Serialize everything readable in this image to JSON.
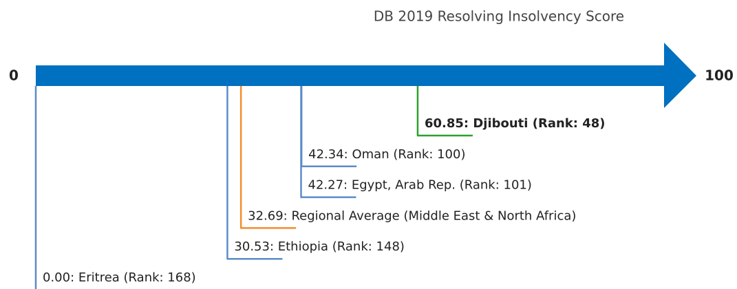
{
  "chart_data": {
    "type": "scale",
    "title": "DB 2019 Resolving Insolvency Score",
    "xlim": [
      0,
      100
    ],
    "xticks": [
      0,
      100
    ],
    "axis_color": "#0070c0",
    "values": [
      60.85,
      42.34,
      42.27,
      32.69,
      30.53,
      0
    ],
    "value_labels": [
      "60.85: Djibouti (Rank: 48)",
      "42.34: Oman (Rank: 100)",
      "42.27: Egypt, Arab Rep. (Rank: 101)",
      "32.69: Regional Average (Middle East & North Africa)",
      "30.53: Ethiopia (Rank: 148)",
      "0.00: Eritrea (Rank: 168)"
    ],
    "colors": [
      "#2ca02c",
      "#5b8bc9",
      "#5b8bc9",
      "#f28e2b",
      "#5b8bc9",
      "#5b8bc9"
    ],
    "bold": [
      true,
      false,
      false,
      false,
      false,
      false
    ]
  }
}
